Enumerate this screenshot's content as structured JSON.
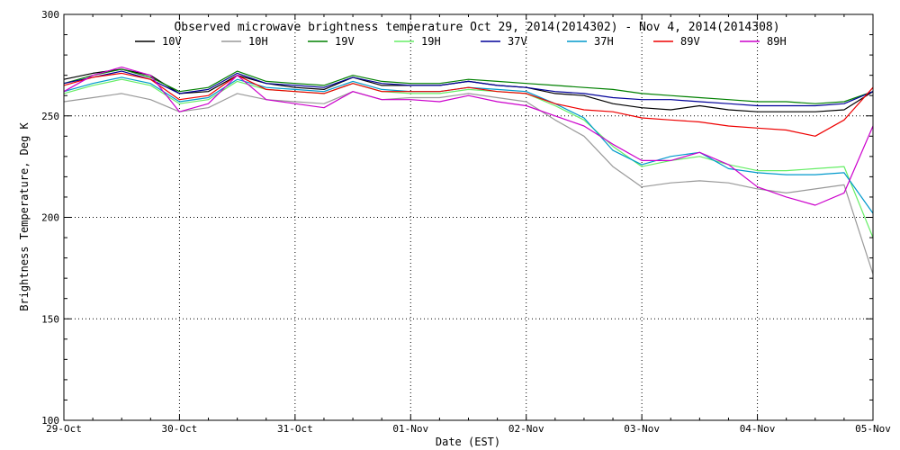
{
  "chart_data": {
    "type": "line",
    "title": "Observed microwave brightness temperature Oct 29, 2014(2014302) - Nov  4, 2014(2014308)",
    "xlabel": "Date (EST)",
    "ylabel": "Brightness Temperature, Deg K",
    "xlim": [
      0,
      7
    ],
    "ylim": [
      100,
      300
    ],
    "x_ticks": [
      0,
      1,
      2,
      3,
      4,
      5,
      6,
      7
    ],
    "x_tick_labels": [
      "29-Oct",
      "30-Oct",
      "31-Oct",
      "01-Nov",
      "02-Nov",
      "03-Nov",
      "04-Nov",
      "05-Nov"
    ],
    "y_ticks": [
      100,
      150,
      200,
      250,
      300
    ],
    "y_tick_labels": [
      "100",
      "150",
      "200",
      "250",
      "300"
    ],
    "grid": true,
    "legend_position": "top",
    "x": [
      0,
      0.25,
      0.5,
      0.75,
      1,
      1.25,
      1.5,
      1.75,
      2,
      2.25,
      2.5,
      2.75,
      3,
      3.25,
      3.5,
      3.75,
      4,
      4.25,
      4.5,
      4.75,
      5,
      5.25,
      5.5,
      5.75,
      6,
      6.25,
      6.5,
      6.75,
      7
    ],
    "series": [
      {
        "name": "10V",
        "color": "#000000",
        "values": [
          268,
          271,
          273,
          270,
          261,
          262,
          270,
          266,
          264,
          263,
          269,
          265,
          265,
          265,
          267,
          265,
          264,
          261,
          260,
          256,
          254,
          253,
          255,
          253,
          252,
          252,
          252,
          253,
          262
        ]
      },
      {
        "name": "10H",
        "color": "#999999",
        "values": [
          257,
          259,
          261,
          258,
          252,
          254,
          261,
          258,
          257,
          256,
          262,
          258,
          259,
          259,
          261,
          259,
          257,
          248,
          240,
          225,
          215,
          217,
          218,
          217,
          214,
          212,
          214,
          216,
          172
        ]
      },
      {
        "name": "19V",
        "color": "#008000",
        "values": [
          266,
          270,
          273,
          269,
          262,
          264,
          272,
          267,
          266,
          265,
          270,
          267,
          266,
          266,
          268,
          267,
          266,
          265,
          264,
          263,
          261,
          260,
          259,
          258,
          257,
          257,
          256,
          257,
          262
        ]
      },
      {
        "name": "19H",
        "color": "#66ee66",
        "values": [
          261,
          265,
          268,
          265,
          256,
          258,
          267,
          263,
          262,
          261,
          266,
          262,
          261,
          261,
          263,
          262,
          261,
          255,
          248,
          235,
          225,
          228,
          230,
          226,
          223,
          223,
          224,
          225,
          190
        ]
      },
      {
        "name": "37V",
        "color": "#000099",
        "values": [
          266,
          269,
          272,
          268,
          261,
          263,
          271,
          266,
          265,
          264,
          269,
          266,
          265,
          265,
          267,
          265,
          264,
          262,
          261,
          259,
          258,
          258,
          257,
          256,
          255,
          255,
          255,
          256,
          262
        ]
      },
      {
        "name": "37H",
        "color": "#0099cc",
        "values": [
          262,
          266,
          269,
          266,
          257,
          259,
          268,
          264,
          263,
          262,
          267,
          263,
          262,
          262,
          264,
          263,
          262,
          256,
          249,
          233,
          226,
          230,
          232,
          224,
          222,
          221,
          221,
          222,
          202
        ]
      },
      {
        "name": "89V",
        "color": "#ee0000",
        "values": [
          265,
          269,
          271,
          268,
          258,
          260,
          270,
          263,
          262,
          261,
          266,
          262,
          262,
          262,
          264,
          262,
          261,
          256,
          253,
          252,
          249,
          248,
          247,
          245,
          244,
          243,
          240,
          248,
          264
        ]
      },
      {
        "name": "89H",
        "color": "#cc00cc",
        "values": [
          262,
          270,
          274,
          270,
          252,
          256,
          270,
          258,
          256,
          254,
          262,
          258,
          258,
          257,
          260,
          257,
          255,
          250,
          245,
          236,
          228,
          228,
          232,
          226,
          215,
          210,
          206,
          212,
          245
        ]
      }
    ]
  }
}
